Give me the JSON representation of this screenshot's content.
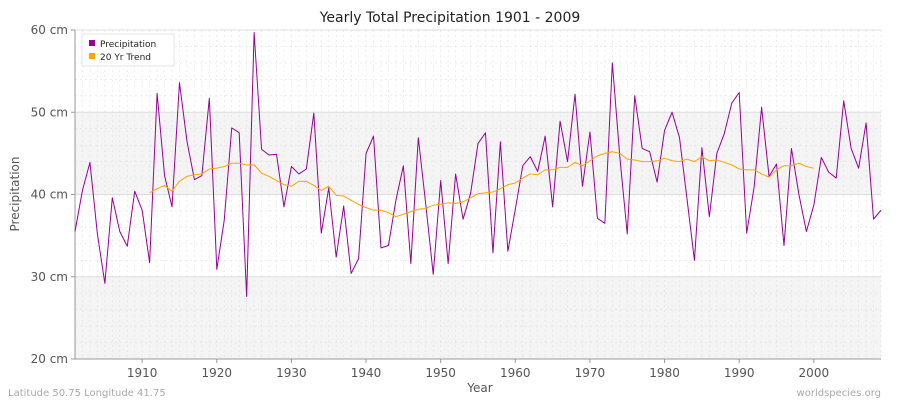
{
  "chart_data": {
    "type": "line",
    "title": "Yearly Total Precipitation 1901 - 2009",
    "xlabel": "Year",
    "ylabel": "Precipitation",
    "xlim": [
      1901,
      2009
    ],
    "ylim": [
      20,
      60
    ],
    "x_ticks": [
      1910,
      1920,
      1930,
      1940,
      1950,
      1960,
      1970,
      1980,
      1990,
      2000
    ],
    "y_ticks": [
      {
        "value": 20,
        "label": "20 cm"
      },
      {
        "value": 30,
        "label": "30 cm"
      },
      {
        "value": 40,
        "label": "40 cm"
      },
      {
        "value": 50,
        "label": "50 cm"
      },
      {
        "value": 60,
        "label": "60 cm"
      }
    ],
    "grid": true,
    "legend_position": "top-left",
    "series": [
      {
        "name": "Precipitation",
        "color": "#990099",
        "x_start": 1901,
        "values": [
          35.5,
          40.5,
          43.9,
          35.2,
          29.2,
          39.6,
          35.5,
          33.7,
          40.4,
          38.1,
          31.7,
          52.3,
          42.3,
          38.5,
          53.6,
          46.5,
          41.8,
          42.3,
          51.7,
          30.9,
          36.9,
          48.1,
          47.5,
          27.6,
          59.7,
          45.5,
          44.8,
          44.9,
          38.5,
          43.4,
          42.5,
          43.1,
          49.9,
          35.3,
          40.8,
          32.4,
          38.6,
          30.4,
          32.2,
          45.0,
          47.1,
          33.5,
          33.8,
          39.3,
          43.5,
          31.6,
          46.9,
          38.8,
          30.3,
          41.7,
          31.6,
          42.5,
          37.0,
          40.1,
          46.2,
          47.5,
          32.9,
          46.4,
          33.1,
          38.2,
          43.5,
          44.6,
          42.8,
          47.1,
          38.5,
          48.9,
          44.0,
          52.2,
          41.0,
          47.6,
          37.1,
          36.5,
          56.0,
          44.6,
          35.2,
          52.0,
          45.6,
          45.2,
          41.5,
          47.8,
          50.0,
          46.9,
          39.5,
          32.0,
          45.7,
          37.3,
          45.0,
          47.4,
          51.1,
          52.4,
          35.3,
          40.9,
          50.6,
          42.2,
          43.7,
          33.8,
          45.6,
          40.0,
          35.5,
          38.7,
          44.5,
          42.7,
          42.0,
          51.4,
          45.6,
          43.2,
          48.7,
          37.0,
          38.1
        ]
      },
      {
        "name": "20 Yr Trend",
        "color": "#ffa500",
        "x_start": 1911,
        "values": [
          40.2,
          40.7,
          41.1,
          40.4,
          41.6,
          42.2,
          42.4,
          42.5,
          43.1,
          43.2,
          43.4,
          43.8,
          43.8,
          43.6,
          43.6,
          42.6,
          42.2,
          41.7,
          41.2,
          41.0,
          41.6,
          41.6,
          41.1,
          40.5,
          41.0,
          39.9,
          39.8,
          39.3,
          38.8,
          38.4,
          38.1,
          38.1,
          37.8,
          37.3,
          37.6,
          37.9,
          38.2,
          38.3,
          38.7,
          38.8,
          39.0,
          38.9,
          39.1,
          39.6,
          40.1,
          40.2,
          40.3,
          40.7,
          41.2,
          41.4,
          42.0,
          42.5,
          42.4,
          43.0,
          43.0,
          43.3,
          43.3,
          43.9,
          43.5,
          44.1,
          44.7,
          45.0,
          45.2,
          45.0,
          44.3,
          44.2,
          44.0,
          44.0,
          44.1,
          44.4,
          44.1,
          44.0,
          44.3,
          44.0,
          44.6,
          44.1,
          44.2,
          43.9,
          43.6,
          43.1,
          43.0,
          43.0,
          42.5,
          42.1,
          43.0,
          43.5,
          43.5,
          43.8,
          43.4,
          43.2
        ]
      }
    ]
  },
  "footer": {
    "left": "Latitude 50.75 Longitude 41.75",
    "right": "worldspecies.org"
  }
}
